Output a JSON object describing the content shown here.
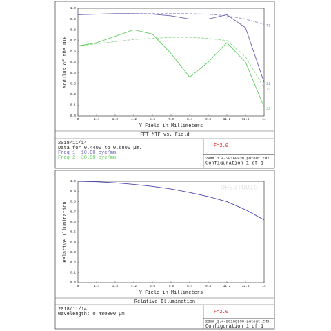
{
  "chart_data": [
    {
      "type": "line",
      "title": "FFT MTF vs. Field",
      "xlabel": "Y Field in Millimeters",
      "ylabel": "Modulus of the OTF",
      "x": [
        0,
        1.4,
        2.8,
        4.2,
        5.6,
        7,
        8.4,
        9.8,
        11.2,
        12.6,
        14
      ],
      "xlim": [
        0,
        14
      ],
      "xticks": [
        0,
        1.4,
        2.8,
        4.2,
        5.6,
        {
          "value": 7,
          "label": "7.0"
        },
        8.4,
        9.8,
        11.2,
        12.6,
        14
      ],
      "ylim": [
        0,
        1
      ],
      "yticks": [
        {
          "value": 0,
          "label": "0.0"
        },
        0.1,
        0.2,
        0.3,
        0.4,
        0.5,
        0.6,
        0.7,
        0.8,
        0.9,
        {
          "value": 1,
          "label": "1.0"
        }
      ],
      "grid": false,
      "series": [
        {
          "name": "T1",
          "color": "#8a84c8",
          "dashed": true,
          "values": [
            0.94,
            0.945,
            0.95,
            0.95,
            0.95,
            0.95,
            0.95,
            0.945,
            0.93,
            0.9,
            0.85
          ]
        },
        {
          "name": "S1",
          "color": "#6a62b0",
          "dashed": false,
          "values": [
            0.94,
            0.945,
            0.95,
            0.95,
            0.945,
            0.93,
            0.9,
            0.9,
            0.94,
            0.82,
            0.31
          ]
        },
        {
          "name": "T2",
          "color": "#8fd88f",
          "dashed": true,
          "values": [
            0.65,
            0.67,
            0.69,
            0.71,
            0.72,
            0.73,
            0.73,
            0.72,
            0.7,
            0.55,
            0.26
          ]
        },
        {
          "name": "S2",
          "color": "#5fcf5f",
          "dashed": false,
          "values": [
            0.65,
            0.68,
            0.74,
            0.8,
            0.76,
            0.58,
            0.36,
            0.5,
            0.68,
            0.5,
            0.08
          ]
        }
      ],
      "info": [
        "2018/11/14",
        "Data for 0.4400 to 0.6800 µm.",
        "Freq 1:   10.00 cyc/mm",
        "Freq 2:   30.00 cyc/mm"
      ],
      "info_colors": [
        "#222",
        "#222",
        "#6a62b0",
        "#5fcf5f"
      ],
      "f_number": "F=2.0",
      "file": "28mm 1.4-20160930 putout.ZMX",
      "configuration": "Configuration 1 of 1"
    },
    {
      "type": "line",
      "title": "Relative Illumination",
      "xlabel": "Y Field in Millimeters",
      "ylabel": "Relative Illumination",
      "watermark": "OPESTUDIO",
      "x": [
        0,
        1.4,
        2.8,
        4.2,
        5.6,
        7,
        8.4,
        9.8,
        11.2,
        12.6,
        14
      ],
      "xlim": [
        0,
        14
      ],
      "xticks": [
        0,
        1.4,
        2.8,
        4.2,
        5.6,
        {
          "value": 7,
          "label": "7.0"
        },
        8.4,
        9.8,
        11.2,
        12.6,
        14
      ],
      "ylim": [
        0,
        1
      ],
      "yticks": [
        {
          "value": 0,
          "label": "0.0"
        },
        0.1,
        0.2,
        0.3,
        0.4,
        0.5,
        0.6,
        0.7,
        0.8,
        0.9,
        {
          "value": 1,
          "label": "1.0"
        }
      ],
      "grid": false,
      "series": [
        {
          "color": "#4a44b0",
          "dashed": false,
          "values": [
            1,
            0.995,
            0.985,
            0.97,
            0.95,
            0.925,
            0.89,
            0.85,
            0.8,
            0.72,
            0.62
          ]
        }
      ],
      "info": [
        "2018/11/14",
        "Wavelength: 0.480000 µm"
      ],
      "info_colors": [
        "#222",
        "#222"
      ],
      "f_number": "F=2.0",
      "file": "28mm 1.4-20160930 putout.ZMX",
      "configuration": "Configuration 1 of 1"
    }
  ]
}
